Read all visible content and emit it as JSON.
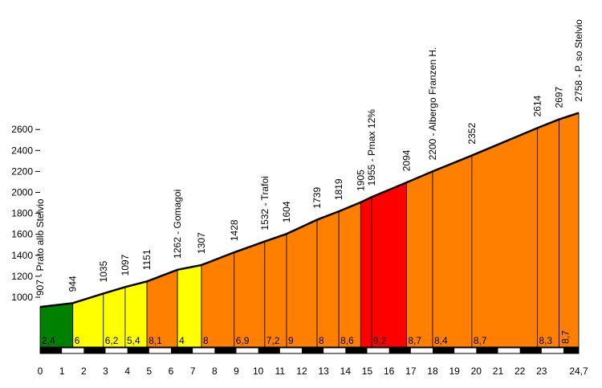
{
  "chart_data": {
    "type": "area",
    "title": "",
    "xlabel": "",
    "ylabel": "",
    "ylim": [
      1000,
      2600
    ],
    "y_ticks": [
      1000,
      1200,
      1400,
      1600,
      1800,
      2000,
      2200,
      2400,
      2600
    ],
    "x_ticks": [
      0,
      1,
      2,
      3,
      4,
      5,
      6,
      7,
      8,
      9,
      10,
      11,
      12,
      13,
      14,
      15,
      16,
      17,
      18,
      19,
      20,
      21,
      22,
      23,
      24.7
    ],
    "x_tick_labels": [
      "0",
      "1",
      "2",
      "3",
      "4",
      "5",
      "6",
      "7",
      "8",
      "9",
      "10",
      "11",
      "12",
      "13",
      "14",
      "15",
      "16",
      "17",
      "18",
      "19",
      "20",
      "21",
      "22",
      "23",
      "24,7"
    ],
    "profile": [
      {
        "km": 0,
        "alt": 907,
        "label": "907 - Prato allo Stelvio"
      },
      {
        "km": 1.5,
        "alt": 944,
        "label": "944"
      },
      {
        "km": 2.9,
        "alt": 1035,
        "label": "1035"
      },
      {
        "km": 3.9,
        "alt": 1097,
        "label": "1097"
      },
      {
        "km": 4.9,
        "alt": 1151,
        "label": "1151"
      },
      {
        "km": 6.3,
        "alt": 1262,
        "label": "1262 - Gomagoi"
      },
      {
        "km": 7.4,
        "alt": 1307,
        "label": "1307"
      },
      {
        "km": 8.9,
        "alt": 1428,
        "label": "1428"
      },
      {
        "km": 10.3,
        "alt": 1532,
        "label": "1532 - Trafoi"
      },
      {
        "km": 11.3,
        "alt": 1604,
        "label": "1604"
      },
      {
        "km": 12.7,
        "alt": 1739,
        "label": "1739"
      },
      {
        "km": 13.7,
        "alt": 1819,
        "label": "1819"
      },
      {
        "km": 14.7,
        "alt": 1905,
        "label": "1905"
      },
      {
        "km": 15.2,
        "alt": 1955,
        "label": "1955 - Pmax 12%"
      },
      {
        "km": 16.8,
        "alt": 2094,
        "label": "2094"
      },
      {
        "km": 18.0,
        "alt": 2200,
        "label": "2200 - Albergo Franzen H."
      },
      {
        "km": 19.8,
        "alt": 2352,
        "label": "2352"
      },
      {
        "km": 22.8,
        "alt": 2614,
        "label": "2614"
      },
      {
        "km": 23.8,
        "alt": 2697,
        "label": "2697"
      },
      {
        "km": 24.7,
        "alt": 2758,
        "label": "2758 - P. so Stelvio"
      }
    ],
    "segments": [
      {
        "gradient": "2,4",
        "color": "#008000"
      },
      {
        "gradient": "6",
        "color": "#ffff00"
      },
      {
        "gradient": "6,2",
        "color": "#ffff00"
      },
      {
        "gradient": "5,4",
        "color": "#ffff00"
      },
      {
        "gradient": "8,1",
        "color": "#ff8000"
      },
      {
        "gradient": "4",
        "color": "#ffff00"
      },
      {
        "gradient": "8",
        "color": "#ff8000"
      },
      {
        "gradient": "6,9",
        "color": "#ff8000"
      },
      {
        "gradient": "7,2",
        "color": "#ff8000"
      },
      {
        "gradient": "9",
        "color": "#ff8000"
      },
      {
        "gradient": "8",
        "color": "#ff8000"
      },
      {
        "gradient": "8,6",
        "color": "#ff8000"
      },
      {
        "gradient": "",
        "color": "#ff0000"
      },
      {
        "gradient": "9,2",
        "color": "#ff0000"
      },
      {
        "gradient": "8,7",
        "color": "#ff8000"
      },
      {
        "gradient": "8,4",
        "color": "#ff8000"
      },
      {
        "gradient": "8,7",
        "color": "#ff8000"
      },
      {
        "gradient": "8,3",
        "color": "#ff8000"
      },
      {
        "gradient": "8,7",
        "color": "#ff8000"
      }
    ]
  }
}
